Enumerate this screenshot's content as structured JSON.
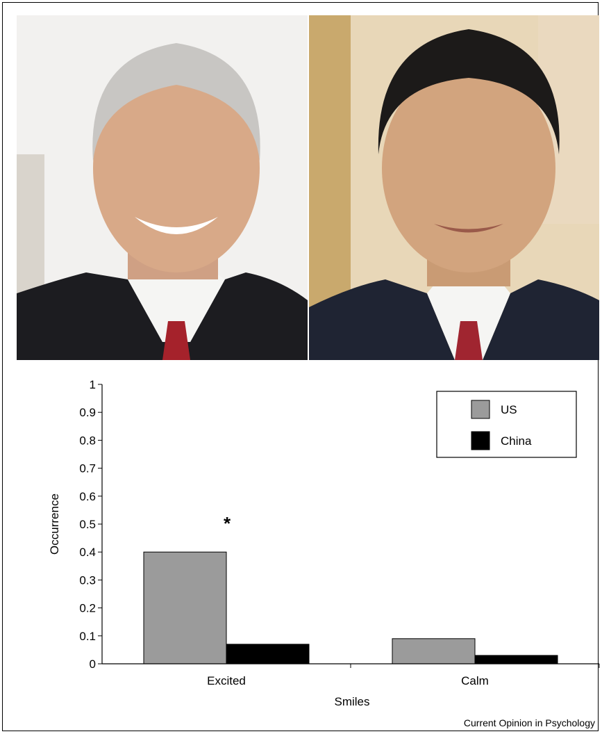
{
  "figure": {
    "credit": "Current Opinion in Psychology"
  },
  "photos": [
    {
      "depicts": "portrait photograph of a smiling man in a dark suit, white shirt and red tie"
    },
    {
      "depicts": "portrait photograph of a man with dark hair in a dark suit, white shirt and red tie"
    }
  ],
  "chart_data": {
    "type": "bar",
    "categories": [
      "Excited",
      "Calm"
    ],
    "series": [
      {
        "name": "US",
        "values": [
          0.4,
          0.09
        ],
        "color": "#9b9b9b"
      },
      {
        "name": "China",
        "values": [
          0.07,
          0.03
        ],
        "color": "#000000"
      }
    ],
    "title": "",
    "xlabel": "Smiles",
    "ylabel": "Occurrence",
    "ylim": [
      0,
      1
    ],
    "yticks": [
      "0",
      "0.1",
      "0.2",
      "0.3",
      "0.4",
      "0.5",
      "0.6",
      "0.7",
      "0.8",
      "0.9",
      "1"
    ],
    "grid": false,
    "legend_position": "top-right",
    "annotations": [
      {
        "text": "*",
        "category": "Excited",
        "y": 0.51
      }
    ]
  }
}
